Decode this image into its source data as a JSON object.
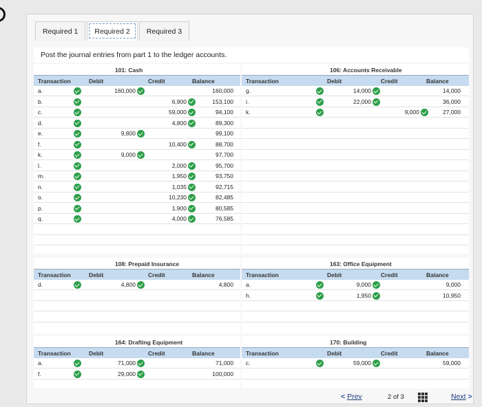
{
  "tabs": [
    "Required 1",
    "Required 2",
    "Required 3"
  ],
  "instruction": "Post the journal entries from part 1 to the ledger accounts.",
  "headers": {
    "transaction": "Transaction",
    "debit": "Debit",
    "credit": "Credit",
    "balance": "Balance"
  },
  "accounts": {
    "cash": {
      "title": "101: Cash",
      "rows": [
        {
          "t": "a.",
          "debit": "160,000",
          "credit": "",
          "balance": "160,000"
        },
        {
          "t": "b.",
          "debit": "",
          "credit": "6,900",
          "balance": "153,100"
        },
        {
          "t": "c.",
          "debit": "",
          "credit": "59,000",
          "balance": "94,100"
        },
        {
          "t": "d.",
          "debit": "",
          "credit": "4,800",
          "balance": "89,300"
        },
        {
          "t": "e.",
          "debit": "9,800",
          "credit": "",
          "balance": "99,100"
        },
        {
          "t": "f.",
          "debit": "",
          "credit": "10,400",
          "balance": "88,700"
        },
        {
          "t": "k.",
          "debit": "9,000",
          "credit": "",
          "balance": "97,700"
        },
        {
          "t": "l.",
          "debit": "",
          "credit": "2,000",
          "balance": "95,700"
        },
        {
          "t": "m.",
          "debit": "",
          "credit": "1,950",
          "balance": "93,750"
        },
        {
          "t": "n.",
          "debit": "",
          "credit": "1,035",
          "balance": "92,715"
        },
        {
          "t": "o.",
          "debit": "",
          "credit": "10,230",
          "balance": "82,485"
        },
        {
          "t": "p.",
          "debit": "",
          "credit": "1,900",
          "balance": "80,585"
        },
        {
          "t": "q.",
          "debit": "",
          "credit": "4,000",
          "balance": "76,585"
        }
      ]
    },
    "ar": {
      "title": "106: Accounts Receivable",
      "rows": [
        {
          "t": "g.",
          "debit": "14,000",
          "credit": "",
          "balance": "14,000"
        },
        {
          "t": "i.",
          "debit": "22,000",
          "credit": "",
          "balance": "36,000"
        },
        {
          "t": "k.",
          "debit": "",
          "credit": "9,000",
          "balance": "27,000"
        }
      ]
    },
    "prepaid": {
      "title": "108: Prepaid Insurance",
      "rows": [
        {
          "t": "d.",
          "debit": "4,800",
          "credit": "",
          "balance": "4,800"
        }
      ]
    },
    "office": {
      "title": "163: Office Equipment",
      "rows": [
        {
          "t": "a.",
          "debit": "9,000",
          "credit": "",
          "balance": "9,000"
        },
        {
          "t": "h.",
          "debit": "1,950",
          "credit": "",
          "balance": "10,950"
        }
      ]
    },
    "drafting": {
      "title": "164: Drafting Equipment",
      "rows": [
        {
          "t": "a.",
          "debit": "71,000",
          "credit": "",
          "balance": "71,000"
        },
        {
          "t": "f.",
          "debit": "29,000",
          "credit": "",
          "balance": "100,000"
        }
      ]
    },
    "building": {
      "title": "170: Building",
      "rows": [
        {
          "t": "c.",
          "debit": "59,000",
          "credit": "",
          "balance": "59,000"
        }
      ]
    }
  },
  "nav": {
    "prev": "Prev",
    "page": "2",
    "of": "of",
    "total": "3",
    "next": "Next"
  }
}
